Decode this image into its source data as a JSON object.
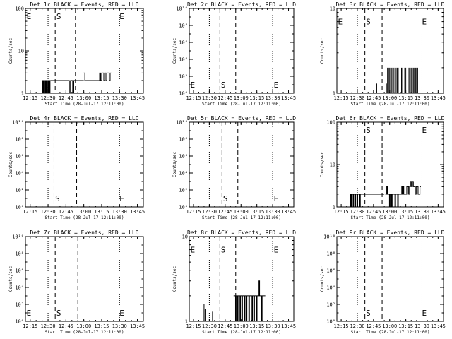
{
  "chart_data": [
    {
      "id": "det1r",
      "type": "line",
      "title": "Det 1r BLACK = Events, RED = LLD",
      "xlabel": "Start Time (28-Jul-17 12:11:00)",
      "ylabel": "Counts/sec",
      "yscale": "log",
      "ylim": [
        1,
        100
      ],
      "xticks": [
        "12:15",
        "12:30",
        "12:45",
        "13:00",
        "13:15",
        "13:30",
        "13:45"
      ],
      "yticks": [
        {
          "v": 1,
          "label": "1"
        },
        {
          "v": 10,
          "label": "10"
        },
        {
          "v": 100,
          "label": "100"
        }
      ],
      "dotted_lines": [
        "12:30",
        "13:30"
      ],
      "dashed_lines": [
        "12:36",
        "12:53"
      ],
      "markers": [
        {
          "text": "E",
          "x": "12:12",
          "y": 65
        },
        {
          "text": "S",
          "x": "12:37",
          "y": 65
        },
        {
          "text": "E",
          "x": "13:30",
          "y": 65
        }
      ],
      "segments": [
        {
          "start": "12:25",
          "end": "12:32",
          "values": [
            1,
            2,
            1,
            2,
            1,
            2,
            1,
            1,
            2,
            1,
            2,
            1,
            2,
            1,
            1,
            2,
            1,
            2,
            1,
            2,
            1
          ]
        },
        {
          "start": "12:32",
          "end": "13:00",
          "values": [
            2,
            2,
            2,
            2,
            2,
            2,
            2,
            2,
            2,
            2,
            2,
            2,
            2,
            2,
            2,
            2,
            2,
            1,
            2,
            2,
            1,
            2,
            2,
            2,
            2,
            2,
            2,
            2,
            2,
            2
          ]
        },
        {
          "start": "13:00",
          "end": "13:23",
          "values": [
            3,
            2,
            2,
            2,
            2,
            2,
            2,
            2,
            2,
            2,
            2,
            2,
            2,
            2,
            2,
            3,
            2,
            3,
            3,
            2,
            3,
            2,
            3,
            3,
            2,
            3
          ]
        }
      ],
      "sticks": []
    },
    {
      "id": "det2r",
      "type": "line",
      "title": "Det 2r BLACK = Events, RED = LLD",
      "xlabel": "Start Time (28-Jul-17 12:11:00)",
      "ylabel": "Counts/sec",
      "yscale": "log",
      "ylim": [
        1,
        10000000000
      ],
      "xticks": [
        "12:15",
        "12:30",
        "12:45",
        "13:00",
        "13:15",
        "13:30",
        "13:45"
      ],
      "yticks": [
        {
          "v": 1,
          "label": "10⁰"
        },
        {
          "v": 100,
          "label": "10²"
        },
        {
          "v": 10000,
          "label": "10⁴"
        },
        {
          "v": 1000000,
          "label": "10⁶"
        },
        {
          "v": 100000000,
          "label": "10⁸"
        },
        {
          "v": 10000000000,
          "label": "10¹⁰"
        }
      ],
      "dotted_lines": [
        "12:30",
        "13:30"
      ],
      "dashed_lines": [
        "12:40",
        "12:55"
      ],
      "markers": [
        {
          "text": "E",
          "x": "12:12",
          "y": 10
        },
        {
          "text": "S",
          "x": "12:41",
          "y": 10
        },
        {
          "text": "E",
          "x": "13:31",
          "y": 10
        }
      ],
      "segments": [],
      "sticks": []
    },
    {
      "id": "det3r",
      "type": "line",
      "title": "Det 3r BLACK = Events, RED = LLD",
      "xlabel": "Start Time (28-Jul-17 12:11:00)",
      "ylabel": "Counts/sec",
      "yscale": "log",
      "ylim": [
        1,
        10
      ],
      "xticks": [
        "12:15",
        "12:30",
        "12:45",
        "13:00",
        "13:15",
        "13:30",
        "13:45"
      ],
      "yticks": [
        {
          "v": 1,
          "label": "1"
        },
        {
          "v": 10,
          "label": "10"
        }
      ],
      "dotted_lines": [
        "12:30",
        "13:30"
      ],
      "dashed_lines": [
        "12:37",
        "12:53"
      ],
      "markers": [
        {
          "text": "E",
          "x": "12:12",
          "y": 7
        },
        {
          "text": "S",
          "x": "12:38",
          "y": 7
        },
        {
          "text": "E",
          "x": "13:30",
          "y": 7
        }
      ],
      "segments": [],
      "sticks": [
        {
          "x": "12:48",
          "value": 1.3
        },
        {
          "x": "12:57",
          "value": 1.3
        },
        {
          "x": "12:58",
          "value": 2
        },
        {
          "x": "12:59",
          "value": 2
        },
        {
          "x": "13:00",
          "value": 2
        },
        {
          "x": "13:01",
          "value": 2
        },
        {
          "x": "13:02",
          "value": 2
        },
        {
          "x": "13:03",
          "value": 2
        },
        {
          "x": "13:04",
          "value": 2
        },
        {
          "x": "13:06",
          "value": 2
        },
        {
          "x": "13:07",
          "value": 2
        },
        {
          "x": "13:08",
          "value": 2
        },
        {
          "x": "13:11",
          "value": 2
        },
        {
          "x": "13:12",
          "value": 2
        },
        {
          "x": "13:14",
          "value": 2
        },
        {
          "x": "13:15",
          "value": 2
        },
        {
          "x": "13:17",
          "value": 2
        },
        {
          "x": "13:18",
          "value": 2
        },
        {
          "x": "13:19",
          "value": 2
        },
        {
          "x": "13:20",
          "value": 2
        },
        {
          "x": "13:21",
          "value": 2
        },
        {
          "x": "13:22",
          "value": 2
        },
        {
          "x": "13:23",
          "value": 2
        },
        {
          "x": "13:24",
          "value": 2
        },
        {
          "x": "13:25",
          "value": 2
        },
        {
          "x": "13:26",
          "value": 2
        }
      ]
    },
    {
      "id": "det4r",
      "type": "line",
      "title": "Det 4r BLACK = Events, RED = LLD",
      "xlabel": "Start Time (28-Jul-17 12:11:00)",
      "ylabel": "Counts/sec",
      "yscale": "log",
      "ylim": [
        1,
        10000000000
      ],
      "xticks": [
        "12:15",
        "12:30",
        "12:45",
        "13:00",
        "13:15",
        "13:30",
        "13:45"
      ],
      "yticks": [
        {
          "v": 1,
          "label": "10⁰"
        },
        {
          "v": 100,
          "label": "10²"
        },
        {
          "v": 10000,
          "label": "10⁴"
        },
        {
          "v": 1000000,
          "label": "10⁶"
        },
        {
          "v": 100000000,
          "label": "10⁸"
        },
        {
          "v": 10000000000,
          "label": "10¹⁰"
        }
      ],
      "dotted_lines": [
        "12:30",
        "13:30"
      ],
      "dashed_lines": [
        "12:35",
        "12:54"
      ],
      "markers": [
        {
          "text": "S",
          "x": "12:36",
          "y": 10
        },
        {
          "text": "E",
          "x": "13:30",
          "y": 10
        }
      ],
      "segments": [],
      "sticks": []
    },
    {
      "id": "det5r",
      "type": "line",
      "title": "Det 5r BLACK = Events, RED = LLD",
      "xlabel": "Start Time (28-Jul-17 12:11:00)",
      "ylabel": "Counts/sec",
      "yscale": "log",
      "ylim": [
        1,
        10000000000
      ],
      "xticks": [
        "12:15",
        "12:30",
        "12:45",
        "13:00",
        "13:15",
        "13:30",
        "13:45"
      ],
      "yticks": [
        {
          "v": 1,
          "label": "10⁰"
        },
        {
          "v": 100,
          "label": "10²"
        },
        {
          "v": 10000,
          "label": "10⁴"
        },
        {
          "v": 1000000,
          "label": "10⁶"
        },
        {
          "v": 100000000,
          "label": "10⁸"
        },
        {
          "v": 10000000000,
          "label": "10¹⁰"
        }
      ],
      "dotted_lines": [
        "12:30",
        "13:30"
      ],
      "dashed_lines": [
        "12:42",
        "12:57"
      ],
      "markers": [
        {
          "text": "S",
          "x": "12:43",
          "y": 10
        },
        {
          "text": "E",
          "x": "13:31",
          "y": 10
        }
      ],
      "segments": [],
      "sticks": []
    },
    {
      "id": "det6r",
      "type": "line",
      "title": "Det 6r BLACK = Events, RED = LLD",
      "xlabel": "Start Time (28-Jul-17 12:11:00)",
      "ylabel": "Counts/sec",
      "yscale": "log",
      "ylim": [
        1,
        100
      ],
      "xticks": [
        "12:15",
        "12:30",
        "12:45",
        "13:00",
        "13:15",
        "13:30",
        "13:45"
      ],
      "yticks": [
        {
          "v": 1,
          "label": "1"
        },
        {
          "v": 10,
          "label": "10"
        },
        {
          "v": 100,
          "label": "100"
        }
      ],
      "dotted_lines": [
        "12:30",
        "13:30"
      ],
      "dashed_lines": [
        "12:37",
        "12:53"
      ],
      "markers": [
        {
          "text": "S",
          "x": "12:38",
          "y": 65
        },
        {
          "text": "E",
          "x": "13:30",
          "y": 65
        }
      ],
      "segments": [
        {
          "start": "12:23",
          "end": "12:34",
          "values": [
            1,
            2,
            1,
            2,
            2,
            1,
            2,
            2,
            1,
            2,
            2,
            1,
            2,
            2,
            2,
            1,
            2,
            2
          ]
        },
        {
          "start": "12:34",
          "end": "12:55",
          "values": [
            2,
            2,
            2,
            2,
            2,
            2,
            2,
            2,
            2,
            2,
            2,
            2,
            2,
            2,
            2,
            2,
            2,
            2,
            2,
            2,
            2,
            2
          ]
        },
        {
          "start": "12:56",
          "end": "13:15",
          "values": [
            2,
            2,
            3,
            2,
            2,
            2,
            1,
            2,
            2,
            1,
            2,
            2,
            2,
            2,
            1,
            2,
            2,
            2,
            1,
            2,
            2,
            2,
            2,
            2,
            3,
            2,
            3,
            2,
            2,
            2
          ]
        },
        {
          "start": "13:15",
          "end": "13:29",
          "values": [
            2,
            3,
            3,
            2,
            3,
            4,
            3,
            4,
            3,
            3,
            2,
            3,
            3,
            2,
            2,
            3
          ]
        }
      ],
      "sticks": []
    },
    {
      "id": "det7r",
      "type": "line",
      "title": "Det 7r BLACK = Events, RED = LLD",
      "xlabel": "Start Time (28-Jul-17 12:11:00)",
      "ylabel": "Counts/sec",
      "yscale": "log",
      "ylim": [
        1,
        10000000000
      ],
      "xticks": [
        "12:15",
        "12:30",
        "12:45",
        "13:00",
        "13:15",
        "13:30",
        "13:45"
      ],
      "yticks": [
        {
          "v": 1,
          "label": "10⁰"
        },
        {
          "v": 100,
          "label": "10²"
        },
        {
          "v": 10000,
          "label": "10⁴"
        },
        {
          "v": 1000000,
          "label": "10⁶"
        },
        {
          "v": 100000000,
          "label": "10⁸"
        },
        {
          "v": 10000000000,
          "label": "10¹⁰"
        }
      ],
      "dotted_lines": [
        "12:30",
        "13:30"
      ],
      "dashed_lines": [
        "12:36",
        "12:55"
      ],
      "markers": [
        {
          "text": "E",
          "x": "12:12",
          "y": 10
        },
        {
          "text": "S",
          "x": "12:37",
          "y": 10
        },
        {
          "text": "E",
          "x": "13:30",
          "y": 10
        }
      ],
      "segments": [],
      "sticks": []
    },
    {
      "id": "det8r",
      "type": "line",
      "title": "Det 8r BLACK = Events, RED = LLD",
      "xlabel": "Start Time (28-Jul-17 12:11:00)",
      "ylabel": "Counts/sec",
      "yscale": "log",
      "ylim": [
        1,
        10
      ],
      "xticks": [
        "12:15",
        "12:30",
        "12:45",
        "13:00",
        "13:15",
        "13:30",
        "13:45"
      ],
      "yticks": [
        {
          "v": 1,
          "label": "1"
        },
        {
          "v": 10,
          "label": "10"
        }
      ],
      "dotted_lines": [
        "12:30",
        "13:30"
      ],
      "dashed_lines": [
        "12:40",
        "12:55"
      ],
      "markers": [
        {
          "text": "E",
          "x": "12:12",
          "y": 7
        },
        {
          "text": "S",
          "x": "12:41",
          "y": 7
        },
        {
          "text": "E",
          "x": "13:31",
          "y": 7
        }
      ],
      "segments": [
        {
          "start": "12:53",
          "end": "13:23",
          "values": [
            2,
            2,
            2,
            1,
            2,
            2,
            1,
            2,
            2,
            2,
            1,
            2,
            2,
            1,
            2,
            2,
            2,
            1,
            2,
            2,
            1,
            2,
            2,
            2,
            1,
            2,
            2,
            2,
            2,
            1,
            2,
            2,
            1,
            2,
            2,
            2,
            1,
            2,
            2,
            2,
            3,
            2,
            2,
            2,
            1,
            2,
            2,
            2,
            2,
            2
          ]
        }
      ],
      "sticks": [
        {
          "x": "12:25",
          "value": 1.6
        },
        {
          "x": "12:26",
          "value": 1.4
        },
        {
          "x": "12:33",
          "value": 1.3
        }
      ]
    },
    {
      "id": "det9r",
      "type": "line",
      "title": "Det 9r BLACK = Events, RED = LLD",
      "xlabel": "Start Time (28-Jul-17 12:11:00)",
      "ylabel": "Counts/sec",
      "yscale": "log",
      "ylim": [
        1,
        10000000000
      ],
      "xticks": [
        "12:15",
        "12:30",
        "12:45",
        "13:00",
        "13:15",
        "13:30",
        "13:45"
      ],
      "yticks": [
        {
          "v": 1,
          "label": "10⁰"
        },
        {
          "v": 100,
          "label": "10²"
        },
        {
          "v": 10000,
          "label": "10⁴"
        },
        {
          "v": 1000000,
          "label": "10⁶"
        },
        {
          "v": 100000000,
          "label": "10⁸"
        },
        {
          "v": 10000000000,
          "label": "10¹⁰"
        }
      ],
      "dotted_lines": [
        "12:30",
        "13:30"
      ],
      "dashed_lines": [
        "12:37",
        "12:53"
      ],
      "markers": [
        {
          "text": "S",
          "x": "12:38",
          "y": 10
        },
        {
          "text": "E",
          "x": "13:30",
          "y": 10
        }
      ],
      "segments": [],
      "sticks": []
    }
  ]
}
